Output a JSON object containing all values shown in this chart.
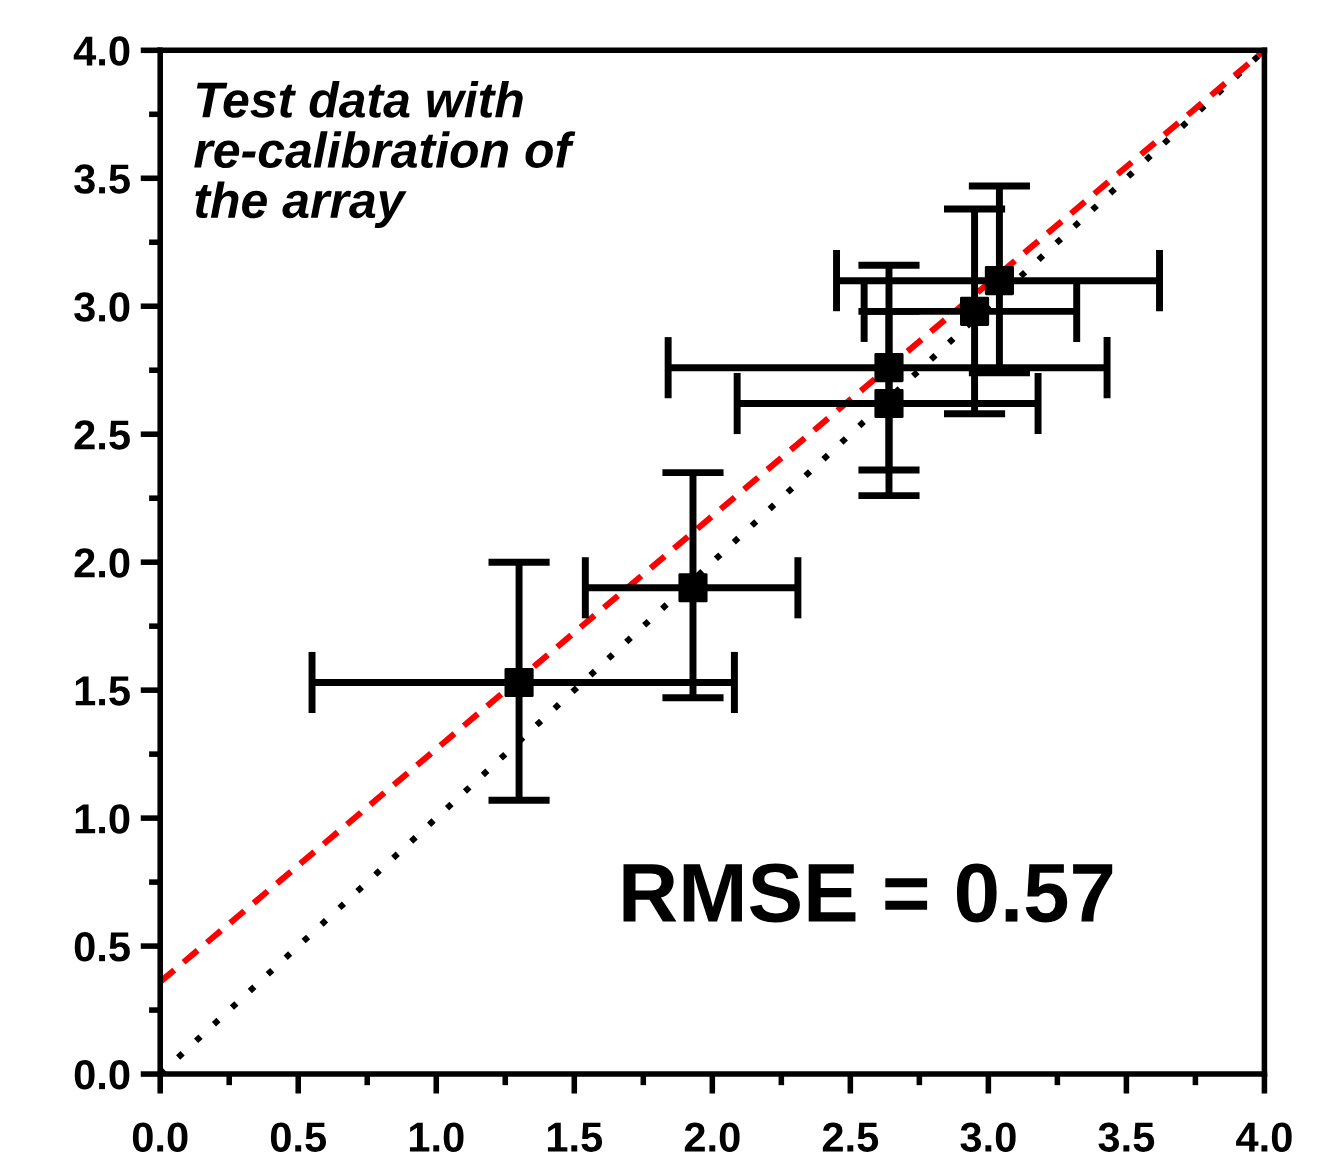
{
  "chart_data": {
    "type": "scatter",
    "xlim": [
      0,
      4
    ],
    "ylim": [
      0,
      4
    ],
    "xticks": [
      {
        "value": 0,
        "label": "0.0"
      },
      {
        "value": 0.5,
        "label": "0.5"
      },
      {
        "value": 1,
        "label": "1.0"
      },
      {
        "value": 1.5,
        "label": "1.5"
      },
      {
        "value": 2,
        "label": "2.0"
      },
      {
        "value": 2.5,
        "label": "2.5"
      },
      {
        "value": 3,
        "label": "3.0"
      },
      {
        "value": 3.5,
        "label": "3.5"
      },
      {
        "value": 4,
        "label": "4.0"
      }
    ],
    "yticks": [
      {
        "value": 0,
        "label": "0.0"
      },
      {
        "value": 0.5,
        "label": "0.5"
      },
      {
        "value": 1,
        "label": "1.0"
      },
      {
        "value": 1.5,
        "label": "1.5"
      },
      {
        "value": 2,
        "label": "2.0"
      },
      {
        "value": 2.5,
        "label": "2.5"
      },
      {
        "value": 3,
        "label": "3.0"
      },
      {
        "value": 3.5,
        "label": "3.5"
      },
      {
        "value": 4,
        "label": "4.0"
      }
    ],
    "grid": false,
    "legend": false,
    "series": [
      {
        "type": "line",
        "color": "#000000",
        "line_style": "dotted",
        "marker": "none",
        "x": [
          0,
          4
        ],
        "values": [
          0,
          4
        ]
      },
      {
        "type": "line",
        "color": "#ff0000",
        "line_style": "dashed",
        "marker": "none",
        "x": [
          0,
          4
        ],
        "values": [
          0.36,
          4.0
        ]
      },
      {
        "color": "#000000",
        "marker": "square",
        "x": [
          1.3,
          1.93,
          2.64,
          2.64,
          2.95,
          3.04
        ],
        "values": [
          1.53,
          1.9,
          2.76,
          2.62,
          2.98,
          3.1
        ],
        "errors": [
          [
            1.07,
            2.0
          ],
          [
            1.47,
            2.35
          ],
          [
            2.36,
            3.16
          ],
          [
            2.26,
            2.98
          ],
          [
            2.58,
            3.38
          ],
          [
            2.74,
            3.47
          ]
        ],
        "xerrors": [
          [
            0.55,
            2.08
          ],
          [
            1.54,
            2.31
          ],
          [
            1.84,
            3.43
          ],
          [
            2.09,
            3.18
          ],
          [
            2.55,
            3.32
          ],
          [
            2.45,
            3.62
          ]
        ]
      }
    ],
    "annotations": [
      "Test data with\nre-calibration of\nthe array",
      "RMSE = 0.57"
    ]
  }
}
